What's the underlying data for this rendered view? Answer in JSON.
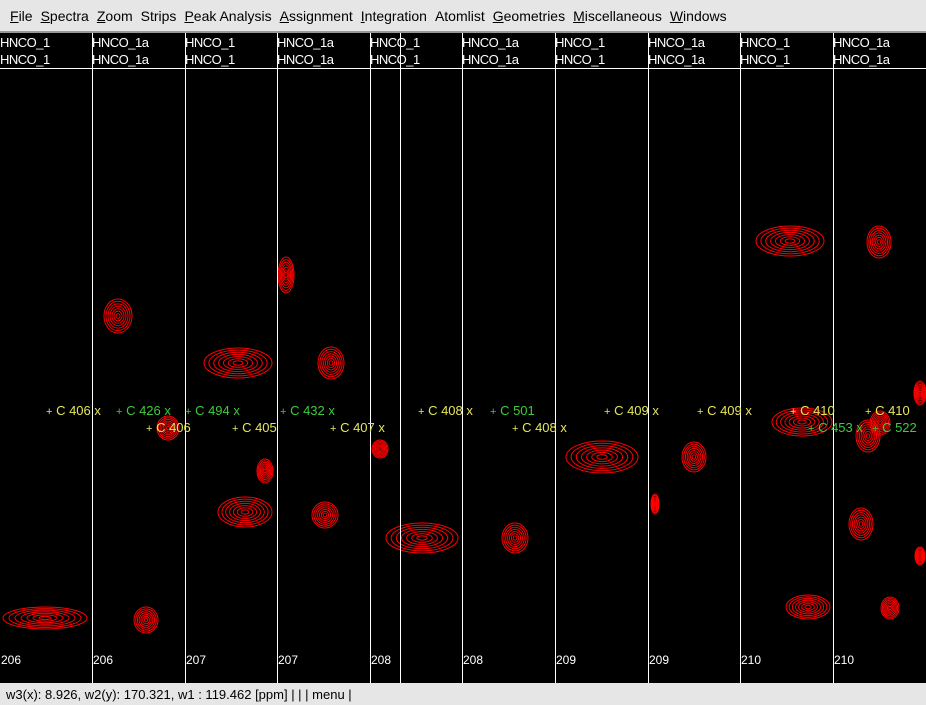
{
  "menu": [
    {
      "u": "F",
      "rest": "ile"
    },
    {
      "u": "S",
      "rest": "pectra"
    },
    {
      "u": "Z",
      "rest": "oom"
    },
    {
      "u": "",
      "rest": "Strips"
    },
    {
      "u": "P",
      "rest": "eak Analysis"
    },
    {
      "u": "A",
      "rest": "ssignment"
    },
    {
      "u": "I",
      "rest": "ntegration"
    },
    {
      "u": "",
      "rest": "Atomlist"
    },
    {
      "u": "G",
      "rest": "eometries"
    },
    {
      "u": "M",
      "rest": "iscellaneous"
    },
    {
      "u": "W",
      "rest": "indows"
    }
  ],
  "strips": [
    {
      "line1": "HNCO_1",
      "line2": "HNCO_1",
      "residue": "206"
    },
    {
      "line1": "HNCO_1a",
      "line2": "HNCO_1a",
      "residue": "206"
    },
    {
      "line1": "HNCO_1",
      "line2": "HNCO_1",
      "residue": "207"
    },
    {
      "line1": "HNCO_1a",
      "line2": "HNCO_1a",
      "residue": "207"
    },
    {
      "line1": "HNCO_1",
      "line2": "HNCO_1",
      "residue": "208"
    },
    {
      "line1": "HNCO_1a",
      "line2": "HNCO_1a",
      "residue": "208"
    },
    {
      "line1": "HNCO_1",
      "line2": "HNCO_1",
      "residue": "209"
    },
    {
      "line1": "HNCO_1a",
      "line2": "HNCO_1a",
      "residue": "209"
    },
    {
      "line1": "HNCO_1",
      "line2": "HNCO_1",
      "residue": "210"
    },
    {
      "line1": "HNCO_1a",
      "line2": "HNCO_1a",
      "residue": "210"
    }
  ],
  "peak_labels": [
    {
      "text": "C 406 x",
      "color": "#e6e65a"
    },
    {
      "text": "C 426 x",
      "color": "#3ccc3c"
    },
    {
      "text": "C 406",
      "color": "#e6e65a"
    },
    {
      "text": "C 494 x",
      "color": "#3ccc3c"
    },
    {
      "text": "C 405",
      "color": "#e6e65a"
    },
    {
      "text": "C 432 x",
      "color": "#3ccc3c"
    },
    {
      "text": "C 407 x",
      "color": "#e6e65a"
    },
    {
      "text": "C 408 x",
      "color": "#e6e65a"
    },
    {
      "text": "C 501",
      "color": "#3ccc3c"
    },
    {
      "text": "C 408 x",
      "color": "#e6e65a"
    },
    {
      "text": "C 409 x",
      "color": "#e6e65a"
    },
    {
      "text": "C 409 x",
      "color": "#e6e65a"
    },
    {
      "text": "C 410",
      "color": "#e6e65a"
    },
    {
      "text": "C 453 x",
      "color": "#3ccc3c"
    },
    {
      "text": "C 410",
      "color": "#e6e65a"
    },
    {
      "text": "C 522",
      "color": "#3ccc3c"
    }
  ],
  "status": "w3(x):   8.926, w2(y): 170.321, w1   : 119.462 [ppm] |    |    | menu |",
  "colors": {
    "background": "#000000",
    "contour": "#ff0000",
    "assigned": "#e6e65a",
    "other": "#3ccc3c"
  }
}
